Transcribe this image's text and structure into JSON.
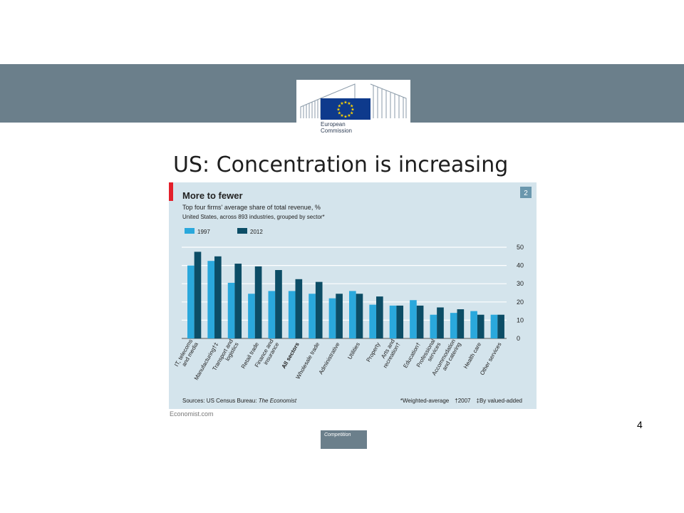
{
  "header": {
    "logo": {
      "line1": "European",
      "line2": "Commission",
      "icon": "eu-flag-icon"
    }
  },
  "slide": {
    "title": "US: Concentration is increasing",
    "page_number": "4",
    "footer_label": "Competition",
    "credit": "Economist.com"
  },
  "figure": {
    "badge": "2",
    "sources_prefix": "Sources: US Census Bureau: ",
    "sources_italic": "The Economist",
    "notes": [
      "*Weighted-average",
      "†2007",
      "‡By valued-added"
    ]
  },
  "colors": {
    "band": "#6b7f8b",
    "figure_bg": "#d4e4ec",
    "series_1997": "#2aa8dc",
    "series_2012": "#0c4d66",
    "accent_red": "#e3202b"
  },
  "chart_data": {
    "type": "bar",
    "title": "More to fewer",
    "subtitle": "Top four firms' average share of total revenue, %",
    "subsubtitle": "United States, across 893 industries, grouped by sector*",
    "categories": [
      "IT, telecoms and media",
      "Manufacturing†‡",
      "Transport and logistics",
      "Retail trade",
      "Finance and insurance",
      "All sectors",
      "Wholesale trade",
      "Administrative",
      "Utilities",
      "Property",
      "Arts and recreation†",
      "Education†",
      "Professional services",
      "Accommodation and catering",
      "Health care",
      "Other services"
    ],
    "category_lines": [
      [
        "IT, telecoms",
        "and media"
      ],
      [
        "Manufacturing†‡"
      ],
      [
        "Transport and",
        "logistics"
      ],
      [
        "Retail trade"
      ],
      [
        "Finance and",
        "insurance"
      ],
      [
        "All sectors"
      ],
      [
        "Wholesale trade"
      ],
      [
        "Administrative"
      ],
      [
        "Utilities"
      ],
      [
        "Property"
      ],
      [
        "Arts and",
        "recreation†"
      ],
      [
        "Education†"
      ],
      [
        "Professional",
        "services"
      ],
      [
        "Accommodation",
        "and catering"
      ],
      [
        "Health care"
      ],
      [
        "Other services"
      ]
    ],
    "bold_category": "All sectors",
    "series": [
      {
        "name": "1997",
        "values": [
          40,
          42.5,
          30.5,
          24.5,
          26,
          26,
          24.5,
          22,
          26,
          18.5,
          18,
          21,
          13,
          14,
          15,
          13
        ]
      },
      {
        "name": "2012",
        "values": [
          47.5,
          45,
          41,
          39.5,
          37.5,
          32.5,
          31,
          24.5,
          24.5,
          23,
          18,
          18,
          17,
          16,
          13,
          13
        ]
      }
    ],
    "ylim": [
      0,
      50
    ],
    "yticks": [
      0,
      10,
      20,
      30,
      40,
      50
    ],
    "y_axis_side": "right",
    "grid": true,
    "legend": "top-left"
  }
}
